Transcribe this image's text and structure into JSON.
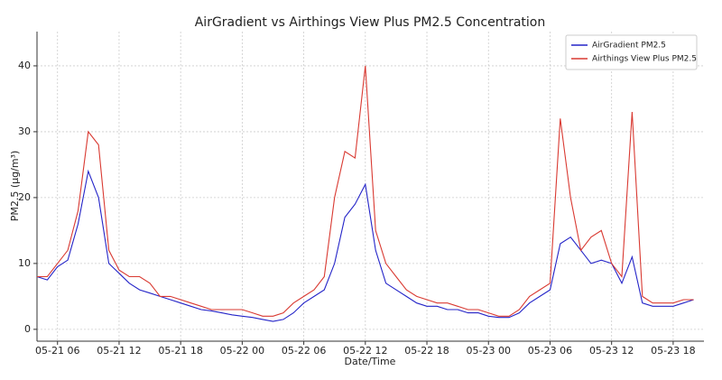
{
  "chart_data": {
    "type": "line",
    "title": "AirGradient vs Airthings View Plus PM2.5 Concentration",
    "x_label": "Date/Time",
    "y_label": "PM2.5 (µg/m³)",
    "x": [
      "05-21 04",
      "05-21 05",
      "05-21 06",
      "05-21 07",
      "05-21 08",
      "05-21 09",
      "05-21 10",
      "05-21 11",
      "05-21 12",
      "05-21 13",
      "05-21 14",
      "05-21 15",
      "05-21 16",
      "05-21 17",
      "05-21 18",
      "05-21 19",
      "05-21 20",
      "05-21 21",
      "05-21 22",
      "05-21 23",
      "05-22 00",
      "05-22 01",
      "05-22 02",
      "05-22 03",
      "05-22 04",
      "05-22 05",
      "05-22 06",
      "05-22 07",
      "05-22 08",
      "05-22 09",
      "05-22 10",
      "05-22 11",
      "05-22 12",
      "05-22 13",
      "05-22 14",
      "05-22 15",
      "05-22 16",
      "05-22 17",
      "05-22 18",
      "05-22 19",
      "05-22 20",
      "05-22 21",
      "05-22 22",
      "05-22 23",
      "05-23 00",
      "05-23 01",
      "05-23 02",
      "05-23 03",
      "05-23 04",
      "05-23 05",
      "05-23 06",
      "05-23 07",
      "05-23 08",
      "05-23 09",
      "05-23 10",
      "05-23 11",
      "05-23 12",
      "05-23 13",
      "05-23 14",
      "05-23 15",
      "05-23 16",
      "05-23 17",
      "05-23 18",
      "05-23 19",
      "05-23 20"
    ],
    "series": [
      {
        "name": "AirGradient PM2.5",
        "color": "#2424c8",
        "values": [
          8,
          7.5,
          9.5,
          10.5,
          16,
          24,
          20,
          10,
          8.5,
          7,
          6,
          5.5,
          5,
          4.5,
          4,
          3.5,
          3,
          2.8,
          2.5,
          2.2,
          2,
          1.8,
          1.5,
          1.2,
          1.5,
          2.5,
          4,
          5,
          6,
          10,
          17,
          19,
          22,
          12,
          7,
          6,
          5,
          4,
          3.5,
          3.5,
          3,
          3,
          2.5,
          2.5,
          2,
          1.8,
          1.8,
          2.5,
          4,
          5,
          6,
          13,
          14,
          12,
          10,
          10.5,
          10,
          7,
          11,
          4,
          3.5,
          3.5,
          3.5,
          4,
          4.5
        ]
      },
      {
        "name": "Airthings View Plus PM2.5",
        "color": "#d93a32",
        "values": [
          8,
          8,
          10,
          12,
          18,
          30,
          28,
          12,
          9,
          8,
          8,
          7,
          5,
          5,
          4.5,
          4,
          3.5,
          3,
          3,
          3,
          3,
          2.5,
          2,
          2,
          2.5,
          4,
          5,
          6,
          8,
          20,
          27,
          26,
          40,
          15,
          10,
          8,
          6,
          5,
          4.5,
          4,
          4,
          3.5,
          3,
          3,
          2.5,
          2,
          2,
          3,
          5,
          6,
          7,
          32,
          20,
          12,
          14,
          15,
          10,
          8,
          33,
          5,
          4,
          4,
          4,
          4.5,
          4.5
        ]
      }
    ],
    "xlim": [
      "05-21 04",
      "05-23 21"
    ],
    "xticks": [
      "05-21 06",
      "05-21 12",
      "05-21 18",
      "05-22 00",
      "05-22 06",
      "05-22 12",
      "05-22 18",
      "05-23 00",
      "05-23 06",
      "05-23 12",
      "05-23 18"
    ],
    "ylim": [
      -1.8,
      45.2
    ],
    "yticks": [
      0,
      10,
      20,
      30,
      40
    ],
    "grid": true,
    "legend": "upper right"
  }
}
